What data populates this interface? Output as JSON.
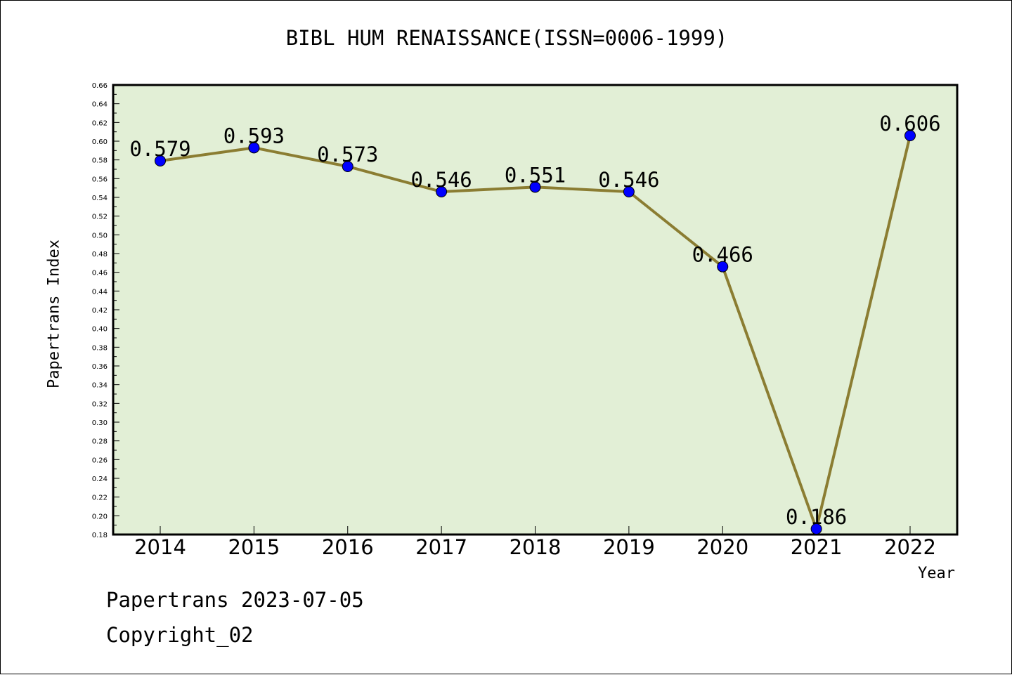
{
  "chart_data": {
    "type": "line",
    "title": "BIBL HUM RENAISSANCE(ISSN=0006-1999)",
    "xlabel": "Year",
    "ylabel": "Papertrans Index",
    "categories": [
      "2014",
      "2015",
      "2016",
      "2017",
      "2018",
      "2019",
      "2020",
      "2021",
      "2022"
    ],
    "series": [
      {
        "values": [
          0.579,
          0.593,
          0.573,
          0.546,
          0.551,
          0.546,
          0.466,
          0.186,
          0.606
        ],
        "labels": [
          "0.579",
          "0.593",
          "0.573",
          "0.546",
          "0.551",
          "0.546",
          "0.466",
          "0.186",
          "0.606"
        ]
      }
    ],
    "ylim": [
      0.18,
      0.66
    ],
    "yticks": [
      "0.18",
      "0.20",
      "0.22",
      "0.24",
      "0.26",
      "0.28",
      "0.30",
      "0.32",
      "0.34",
      "0.36",
      "0.38",
      "0.40",
      "0.42",
      "0.44",
      "0.46",
      "0.48",
      "0.50",
      "0.52",
      "0.54",
      "0.56",
      "0.58",
      "0.60",
      "0.62",
      "0.64",
      "0.66"
    ],
    "grid": false,
    "colors": {
      "plot_background": "#e2efd6",
      "line": "#8b7d32",
      "marker": "#0000ff"
    }
  },
  "footer": {
    "date_text": "Papertrans 2023-07-05",
    "copyright_text": "Copyright_02"
  }
}
